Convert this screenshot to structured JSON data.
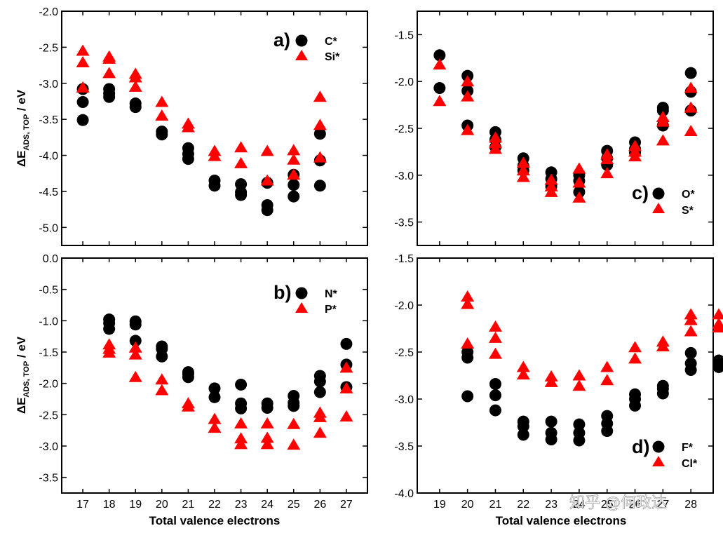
{
  "figure": {
    "watermark": "知乎 @何政达"
  },
  "colors": {
    "circle": "#000000",
    "triangle": "#ff0000",
    "axis": "#000000"
  },
  "chart_data": [
    {
      "id": "a",
      "type": "scatter",
      "panel_label": "a)",
      "ylabel_main": "ΔE",
      "ylabel_sub": "ADS, TOP",
      "ylabel_unit": " / eV",
      "xlabel": "",
      "xlim": [
        16.2,
        27.8
      ],
      "ylim": [
        -5.25,
        -2.0
      ],
      "x_ticks": [
        17,
        18,
        19,
        20,
        21,
        22,
        23,
        24,
        25,
        26,
        27
      ],
      "y_ticks": [
        -5.0,
        -4.5,
        -4.0,
        -3.5,
        -3.0,
        -2.5,
        -2.0
      ],
      "y_tick_labels": [
        "-5.0",
        "-4.5",
        "-4.0",
        "-3.5",
        "-3.0",
        "-2.5",
        "-2.0"
      ],
      "legend": [
        {
          "name": "C*",
          "marker": "circle"
        },
        {
          "name": "Si*",
          "marker": "triangle"
        }
      ],
      "series": [
        {
          "name": "C*",
          "marker": "circle",
          "points": [
            [
              17,
              -3.08
            ],
            [
              17,
              -3.26
            ],
            [
              17,
              -3.51
            ],
            [
              18,
              -3.08
            ],
            [
              18,
              -3.14
            ],
            [
              18,
              -3.19
            ],
            [
              19,
              -3.28
            ],
            [
              19,
              -3.33
            ],
            [
              20,
              -3.67
            ],
            [
              20,
              -3.71
            ],
            [
              21,
              -3.9
            ],
            [
              21,
              -3.98
            ],
            [
              21,
              -4.05
            ],
            [
              22,
              -4.35
            ],
            [
              22,
              -4.42
            ],
            [
              23,
              -4.4
            ],
            [
              23,
              -4.51
            ],
            [
              23,
              -4.55
            ],
            [
              24,
              -4.38
            ],
            [
              24,
              -4.69
            ],
            [
              24,
              -4.76
            ],
            [
              25,
              -4.27
            ],
            [
              25,
              -4.41
            ],
            [
              25,
              -4.57
            ],
            [
              26,
              -3.7
            ],
            [
              26,
              -4.07
            ],
            [
              26,
              -4.42
            ]
          ]
        },
        {
          "name": "Si*",
          "marker": "triangle",
          "points": [
            [
              17,
              -2.55
            ],
            [
              17,
              -2.71
            ],
            [
              17,
              -3.06
            ],
            [
              18,
              -2.63
            ],
            [
              18,
              -2.66
            ],
            [
              18,
              -2.86
            ],
            [
              19,
              -2.87
            ],
            [
              19,
              -2.92
            ],
            [
              19,
              -3.05
            ],
            [
              20,
              -3.26
            ],
            [
              20,
              -3.45
            ],
            [
              21,
              -3.56
            ],
            [
              21,
              -3.61
            ],
            [
              22,
              -3.94
            ],
            [
              22,
              -4.01
            ],
            [
              23,
              -3.89
            ],
            [
              23,
              -4.11
            ],
            [
              24,
              -3.94
            ],
            [
              24,
              -4.35
            ],
            [
              25,
              -3.93
            ],
            [
              25,
              -4.06
            ],
            [
              25,
              -4.27
            ],
            [
              26,
              -3.19
            ],
            [
              26,
              -3.58
            ],
            [
              26,
              -4.03
            ]
          ]
        }
      ]
    },
    {
      "id": "b",
      "type": "scatter",
      "panel_label": "b)",
      "ylabel_main": "ΔE",
      "ylabel_sub": "ADS, TOP",
      "ylabel_unit": " / eV",
      "xlabel": "Total valence electrons",
      "xlim": [
        16.2,
        27.8
      ],
      "ylim": [
        -3.75,
        0.0
      ],
      "x_ticks": [
        17,
        18,
        19,
        20,
        21,
        22,
        23,
        24,
        25,
        26,
        27
      ],
      "y_ticks": [
        -3.5,
        -3.0,
        -2.5,
        -2.0,
        -1.5,
        -1.0,
        -0.5,
        0.0
      ],
      "y_tick_labels": [
        "-3.5",
        "-3.0",
        "-2.5",
        "-2.0",
        "-1.5",
        "-1.0",
        "-0.5",
        "0.0"
      ],
      "legend": [
        {
          "name": "N*",
          "marker": "circle"
        },
        {
          "name": "P*",
          "marker": "triangle"
        }
      ],
      "series": [
        {
          "name": "N*",
          "marker": "circle",
          "points": [
            [
              18,
              -0.98
            ],
            [
              18,
              -1.04
            ],
            [
              18,
              -1.13
            ],
            [
              19,
              -1.01
            ],
            [
              19,
              -1.06
            ],
            [
              19,
              -1.32
            ],
            [
              20,
              -1.41
            ],
            [
              20,
              -1.45
            ],
            [
              20,
              -1.57
            ],
            [
              21,
              -1.82
            ],
            [
              21,
              -1.85
            ],
            [
              21,
              -1.9
            ],
            [
              22,
              -2.08
            ],
            [
              22,
              -2.22
            ],
            [
              23,
              -2.02
            ],
            [
              23,
              -2.32
            ],
            [
              23,
              -2.4
            ],
            [
              24,
              -2.32
            ],
            [
              24,
              -2.39
            ],
            [
              25,
              -2.2
            ],
            [
              25,
              -2.31
            ],
            [
              25,
              -2.36
            ],
            [
              26,
              -1.88
            ],
            [
              26,
              -1.97
            ],
            [
              26,
              -2.14
            ],
            [
              27,
              -1.37
            ],
            [
              27,
              -1.7
            ],
            [
              27,
              -2.06
            ]
          ]
        },
        {
          "name": "P*",
          "marker": "triangle",
          "points": [
            [
              18,
              -1.38
            ],
            [
              18,
              -1.45
            ],
            [
              18,
              -1.51
            ],
            [
              19,
              -1.43
            ],
            [
              19,
              -1.54
            ],
            [
              19,
              -1.9
            ],
            [
              20,
              -1.94
            ],
            [
              20,
              -2.11
            ],
            [
              21,
              -2.32
            ],
            [
              21,
              -2.37
            ],
            [
              22,
              -2.57
            ],
            [
              22,
              -2.71
            ],
            [
              23,
              -2.64
            ],
            [
              23,
              -2.88
            ],
            [
              23,
              -2.97
            ],
            [
              24,
              -2.64
            ],
            [
              24,
              -2.87
            ],
            [
              24,
              -2.97
            ],
            [
              25,
              -2.65
            ],
            [
              25,
              -2.98
            ],
            [
              26,
              -2.47
            ],
            [
              26,
              -2.54
            ],
            [
              26,
              -2.79
            ],
            [
              27,
              -1.75
            ],
            [
              27,
              -2.08
            ],
            [
              27,
              -2.53
            ]
          ]
        }
      ]
    },
    {
      "id": "c",
      "type": "scatter",
      "panel_label": "c)",
      "ylabel_main": "",
      "ylabel_sub": "",
      "ylabel_unit": "",
      "xlabel": "",
      "xlim": [
        18.2,
        28.8
      ],
      "ylim": [
        -3.75,
        -1.25
      ],
      "x_ticks": [
        19,
        20,
        21,
        22,
        23,
        24,
        25,
        26,
        27,
        28
      ],
      "y_ticks": [
        -3.5,
        -3.0,
        -2.5,
        -2.0,
        -1.5
      ],
      "y_tick_labels": [
        "-3.5",
        "-3.0",
        "-2.5",
        "-2.0",
        "-1.5"
      ],
      "legend": [
        {
          "name": "O*",
          "marker": "circle"
        },
        {
          "name": "S*",
          "marker": "triangle"
        }
      ],
      "series": [
        {
          "name": "O*",
          "marker": "circle",
          "points": [
            [
              19,
              -1.72
            ],
            [
              19,
              -2.07
            ],
            [
              20,
              -1.94
            ],
            [
              20,
              -2.1
            ],
            [
              20,
              -2.47
            ],
            [
              21,
              -2.54
            ],
            [
              21,
              -2.62
            ],
            [
              21,
              -2.7
            ],
            [
              22,
              -2.82
            ],
            [
              22,
              -2.9
            ],
            [
              22,
              -2.95
            ],
            [
              23,
              -2.97
            ],
            [
              23,
              -3.04
            ],
            [
              23,
              -3.12
            ],
            [
              24,
              -3.0
            ],
            [
              24,
              -3.06
            ],
            [
              24,
              -3.18
            ],
            [
              25,
              -2.74
            ],
            [
              25,
              -2.82
            ],
            [
              25,
              -2.89
            ],
            [
              26,
              -2.65
            ],
            [
              26,
              -2.72
            ],
            [
              26,
              -2.76
            ],
            [
              27,
              -2.28
            ],
            [
              27,
              -2.31
            ],
            [
              27,
              -2.47
            ],
            [
              28,
              -1.91
            ],
            [
              28,
              -2.11
            ],
            [
              28,
              -2.31
            ]
          ]
        },
        {
          "name": "S*",
          "marker": "triangle",
          "points": [
            [
              19,
              -1.82
            ],
            [
              19,
              -2.21
            ],
            [
              20,
              -2.0
            ],
            [
              20,
              -2.16
            ],
            [
              20,
              -2.52
            ],
            [
              21,
              -2.6
            ],
            [
              21,
              -2.66
            ],
            [
              21,
              -2.72
            ],
            [
              22,
              -2.87
            ],
            [
              22,
              -2.95
            ],
            [
              22,
              -3.02
            ],
            [
              23,
              -3.05
            ],
            [
              23,
              -3.12
            ],
            [
              23,
              -3.18
            ],
            [
              24,
              -2.93
            ],
            [
              24,
              -3.08
            ],
            [
              24,
              -3.24
            ],
            [
              25,
              -2.78
            ],
            [
              25,
              -2.83
            ],
            [
              25,
              -2.98
            ],
            [
              26,
              -2.69
            ],
            [
              26,
              -2.75
            ],
            [
              26,
              -2.8
            ],
            [
              27,
              -2.38
            ],
            [
              27,
              -2.43
            ],
            [
              27,
              -2.63
            ],
            [
              28,
              -2.07
            ],
            [
              28,
              -2.28
            ],
            [
              28,
              -2.53
            ]
          ]
        }
      ]
    },
    {
      "id": "d",
      "type": "scatter",
      "panel_label": "d)",
      "ylabel_main": "",
      "ylabel_sub": "",
      "ylabel_unit": "",
      "xlabel": "Total valence electrons",
      "xlim": [
        18.2,
        28.8
      ],
      "ylim": [
        -4.0,
        -1.5
      ],
      "x_ticks": [
        19,
        20,
        21,
        22,
        23,
        24,
        25,
        26,
        27,
        28
      ],
      "y_ticks": [
        -4.0,
        -3.5,
        -3.0,
        -2.5,
        -2.0,
        -1.5
      ],
      "y_tick_labels": [
        "-4.0",
        "-3.5",
        "-3.0",
        "-2.5",
        "-2.0",
        "-1.5"
      ],
      "legend": [
        {
          "name": "F*",
          "marker": "circle"
        },
        {
          "name": "Cl*",
          "marker": "triangle"
        }
      ],
      "series": [
        {
          "name": "F*",
          "marker": "circle",
          "points": [
            [
              20,
              -2.5
            ],
            [
              20,
              -2.56
            ],
            [
              20,
              -2.97
            ],
            [
              21,
              -2.84
            ],
            [
              21,
              -2.96
            ],
            [
              21,
              -3.12
            ],
            [
              22,
              -3.24
            ],
            [
              22,
              -3.29
            ],
            [
              22,
              -3.38
            ],
            [
              23,
              -3.24
            ],
            [
              23,
              -3.36
            ],
            [
              23,
              -3.43
            ],
            [
              24,
              -3.27
            ],
            [
              24,
              -3.36
            ],
            [
              24,
              -3.44
            ],
            [
              25,
              -3.18
            ],
            [
              25,
              -3.26
            ],
            [
              25,
              -3.34
            ],
            [
              26,
              -2.95
            ],
            [
              26,
              -3.0
            ],
            [
              26,
              -3.07
            ],
            [
              27,
              -2.86
            ],
            [
              27,
              -2.89
            ],
            [
              27,
              -2.94
            ],
            [
              28,
              -2.51
            ],
            [
              28,
              -2.62
            ],
            [
              28,
              -2.69
            ],
            [
              29,
              -2.59
            ],
            [
              29,
              -2.66
            ]
          ]
        },
        {
          "name": "Cl*",
          "marker": "triangle",
          "points": [
            [
              20,
              -1.91
            ],
            [
              20,
              -1.99
            ],
            [
              20,
              -2.41
            ],
            [
              21,
              -2.23
            ],
            [
              21,
              -2.35
            ],
            [
              21,
              -2.52
            ],
            [
              22,
              -2.66
            ],
            [
              22,
              -2.74
            ],
            [
              23,
              -2.76
            ],
            [
              23,
              -2.82
            ],
            [
              24,
              -2.75
            ],
            [
              24,
              -2.86
            ],
            [
              25,
              -2.66
            ],
            [
              25,
              -2.8
            ],
            [
              26,
              -2.45
            ],
            [
              26,
              -2.57
            ],
            [
              27,
              -2.39
            ],
            [
              27,
              -2.44
            ],
            [
              28,
              -2.1
            ],
            [
              28,
              -2.16
            ],
            [
              28,
              -2.28
            ],
            [
              29,
              -2.1
            ],
            [
              29,
              -2.2
            ],
            [
              29,
              -2.24
            ]
          ]
        }
      ]
    }
  ]
}
